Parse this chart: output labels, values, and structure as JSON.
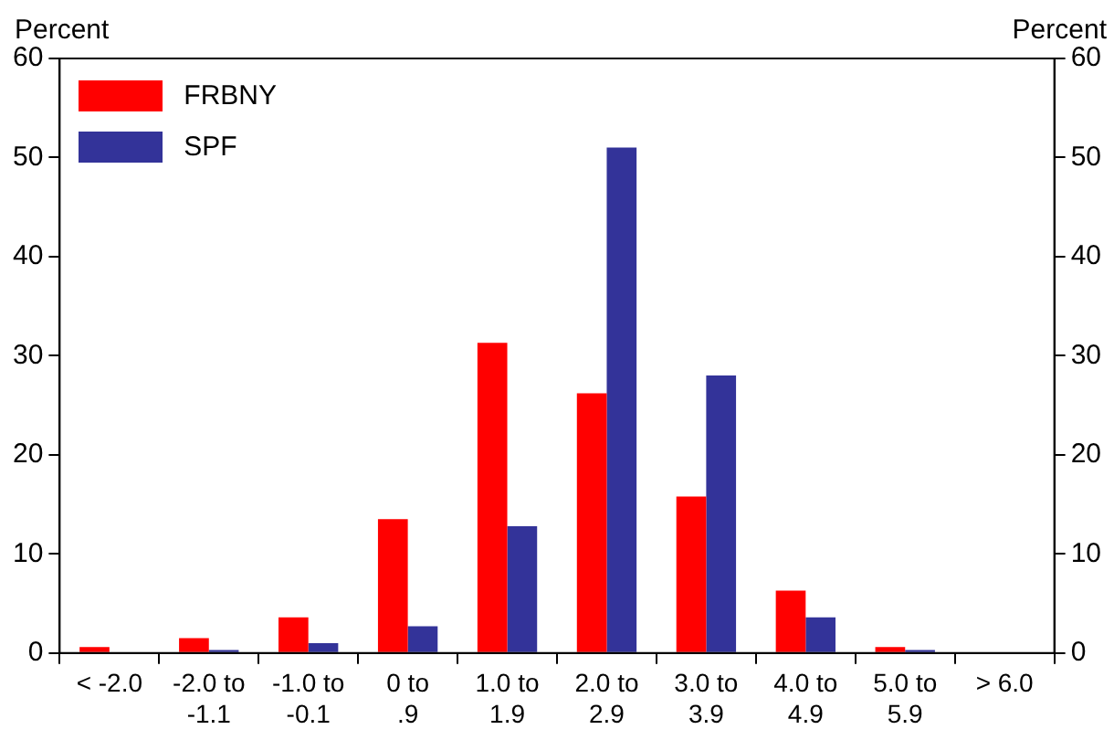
{
  "chart_data": {
    "type": "bar",
    "ylabel": "Percent",
    "y2label": "Percent",
    "categories": [
      "< -2.0",
      "-2.0 to -1.1",
      "-1.0 to -0.1",
      "0 to .9",
      "1.0 to 1.9",
      "2.0 to 2.9",
      "3.0 to 3.9",
      "4.0 to 4.9",
      "5.0 to 5.9",
      "> 6.0"
    ],
    "series": [
      {
        "name": "FRBNY",
        "color": "#ff0000",
        "values": [
          0.6,
          1.5,
          3.6,
          13.5,
          31.3,
          26.2,
          15.8,
          6.3,
          0.6,
          0
        ]
      },
      {
        "name": "SPF",
        "color": "#333399",
        "values": [
          0,
          0.3,
          1.0,
          2.7,
          12.8,
          51,
          28,
          3.6,
          0.3,
          0
        ]
      }
    ],
    "ylim": [
      0,
      60
    ],
    "yticks": [
      0,
      10,
      20,
      30,
      40,
      50,
      60
    ],
    "y2lim": [
      0,
      60
    ],
    "y2ticks": [
      0,
      10,
      20,
      30,
      40,
      50,
      60
    ],
    "grid": false,
    "legend": "top left"
  }
}
